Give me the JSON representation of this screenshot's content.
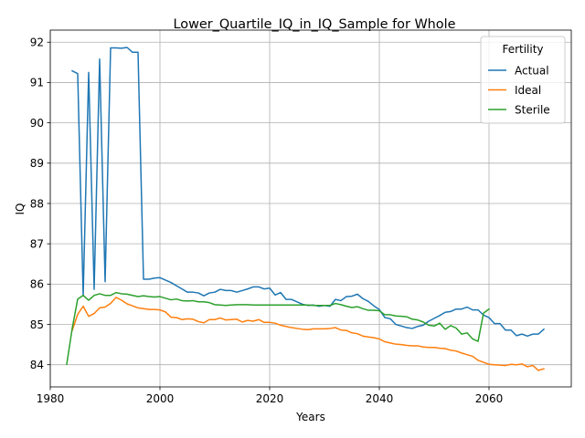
{
  "chart_data": {
    "type": "line",
    "title": "Lower_Quartile_IQ_in_IQ_Sample for Whole",
    "xlabel": "Years",
    "ylabel": "IQ",
    "xlim": [
      1980,
      2075
    ],
    "ylim": [
      83.45,
      92.3
    ],
    "xticks": [
      1980,
      2000,
      2020,
      2040,
      2060
    ],
    "yticks": [
      84,
      85,
      86,
      87,
      88,
      89,
      90,
      91,
      92
    ],
    "grid": true,
    "legend": {
      "title": "Fertility",
      "placement": "top-right"
    },
    "series": [
      {
        "name": "Actual",
        "color": "#1f77b4",
        "points": [
          [
            1984,
            91.29
          ],
          [
            1985,
            91.22
          ],
          [
            1986,
            85.72
          ],
          [
            1987,
            91.25
          ],
          [
            1988,
            85.87
          ],
          [
            1989,
            91.58
          ],
          [
            1990,
            86.06
          ],
          [
            1991,
            91.86
          ],
          [
            1992,
            91.86
          ],
          [
            1993,
            91.85
          ],
          [
            1994,
            91.87
          ],
          [
            1995,
            91.75
          ],
          [
            1996,
            91.75
          ],
          [
            1997,
            86.12
          ],
          [
            1998,
            86.12
          ],
          [
            1999,
            86.15
          ],
          [
            2000,
            86.16
          ],
          [
            2001,
            86.1
          ],
          [
            2002,
            86.04
          ],
          [
            2003,
            85.96
          ],
          [
            2004,
            85.88
          ],
          [
            2005,
            85.8
          ],
          [
            2006,
            85.8
          ],
          [
            2007,
            85.78
          ],
          [
            2008,
            85.71
          ],
          [
            2009,
            85.78
          ],
          [
            2010,
            85.8
          ],
          [
            2011,
            85.87
          ],
          [
            2012,
            85.84
          ],
          [
            2013,
            85.84
          ],
          [
            2014,
            85.8
          ],
          [
            2015,
            85.84
          ],
          [
            2016,
            85.88
          ],
          [
            2017,
            85.93
          ],
          [
            2018,
            85.93
          ],
          [
            2019,
            85.88
          ],
          [
            2020,
            85.9
          ],
          [
            2021,
            85.73
          ],
          [
            2022,
            85.79
          ],
          [
            2023,
            85.62
          ],
          [
            2024,
            85.62
          ],
          [
            2025,
            85.56
          ],
          [
            2026,
            85.5
          ],
          [
            2027,
            85.47
          ],
          [
            2028,
            85.48
          ],
          [
            2029,
            85.45
          ],
          [
            2030,
            85.47
          ],
          [
            2031,
            85.45
          ],
          [
            2032,
            85.62
          ],
          [
            2033,
            85.59
          ],
          [
            2034,
            85.69
          ],
          [
            2035,
            85.7
          ],
          [
            2036,
            85.75
          ],
          [
            2037,
            85.64
          ],
          [
            2038,
            85.57
          ],
          [
            2039,
            85.46
          ],
          [
            2040,
            85.37
          ],
          [
            2041,
            85.17
          ],
          [
            2042,
            85.14
          ],
          [
            2043,
            85.0
          ],
          [
            2044,
            84.96
          ],
          [
            2045,
            84.92
          ],
          [
            2046,
            84.9
          ],
          [
            2047,
            84.95
          ],
          [
            2048,
            84.98
          ],
          [
            2049,
            85.08
          ],
          [
            2050,
            85.15
          ],
          [
            2051,
            85.22
          ],
          [
            2052,
            85.3
          ],
          [
            2053,
            85.32
          ],
          [
            2054,
            85.38
          ],
          [
            2055,
            85.38
          ],
          [
            2056,
            85.43
          ],
          [
            2057,
            85.36
          ],
          [
            2058,
            85.36
          ],
          [
            2059,
            85.23
          ],
          [
            2060,
            85.17
          ],
          [
            2061,
            85.02
          ],
          [
            2062,
            85.02
          ],
          [
            2063,
            84.86
          ],
          [
            2064,
            84.86
          ],
          [
            2065,
            84.72
          ],
          [
            2066,
            84.76
          ],
          [
            2067,
            84.71
          ],
          [
            2068,
            84.76
          ],
          [
            2069,
            84.76
          ],
          [
            2070,
            84.88
          ]
        ]
      },
      {
        "name": "Ideal",
        "color": "#ff7f0e",
        "points": [
          [
            1984,
            84.85
          ],
          [
            1985,
            85.25
          ],
          [
            1986,
            85.45
          ],
          [
            1987,
            85.2
          ],
          [
            1988,
            85.27
          ],
          [
            1989,
            85.41
          ],
          [
            1990,
            85.43
          ],
          [
            1991,
            85.52
          ],
          [
            1992,
            85.67
          ],
          [
            1993,
            85.6
          ],
          [
            1994,
            85.51
          ],
          [
            1995,
            85.46
          ],
          [
            1996,
            85.41
          ],
          [
            1997,
            85.39
          ],
          [
            1998,
            85.37
          ],
          [
            1999,
            85.37
          ],
          [
            2000,
            85.36
          ],
          [
            2001,
            85.31
          ],
          [
            2002,
            85.18
          ],
          [
            2003,
            85.17
          ],
          [
            2004,
            85.12
          ],
          [
            2005,
            85.14
          ],
          [
            2006,
            85.13
          ],
          [
            2007,
            85.07
          ],
          [
            2008,
            85.04
          ],
          [
            2009,
            85.12
          ],
          [
            2010,
            85.12
          ],
          [
            2011,
            85.16
          ],
          [
            2012,
            85.11
          ],
          [
            2013,
            85.12
          ],
          [
            2014,
            85.13
          ],
          [
            2015,
            85.06
          ],
          [
            2016,
            85.1
          ],
          [
            2017,
            85.08
          ],
          [
            2018,
            85.12
          ],
          [
            2019,
            85.05
          ],
          [
            2020,
            85.05
          ],
          [
            2021,
            85.03
          ],
          [
            2022,
            84.98
          ],
          [
            2023,
            84.95
          ],
          [
            2024,
            84.92
          ],
          [
            2025,
            84.9
          ],
          [
            2026,
            84.88
          ],
          [
            2027,
            84.87
          ],
          [
            2028,
            84.89
          ],
          [
            2029,
            84.89
          ],
          [
            2030,
            84.89
          ],
          [
            2031,
            84.9
          ],
          [
            2032,
            84.92
          ],
          [
            2033,
            84.86
          ],
          [
            2034,
            84.85
          ],
          [
            2035,
            84.79
          ],
          [
            2036,
            84.77
          ],
          [
            2037,
            84.71
          ],
          [
            2038,
            84.69
          ],
          [
            2039,
            84.67
          ],
          [
            2040,
            84.64
          ],
          [
            2041,
            84.57
          ],
          [
            2042,
            84.54
          ],
          [
            2043,
            84.51
          ],
          [
            2044,
            84.5
          ],
          [
            2045,
            84.48
          ],
          [
            2046,
            84.47
          ],
          [
            2047,
            84.47
          ],
          [
            2048,
            84.44
          ],
          [
            2049,
            84.43
          ],
          [
            2050,
            84.43
          ],
          [
            2051,
            84.41
          ],
          [
            2052,
            84.4
          ],
          [
            2053,
            84.36
          ],
          [
            2054,
            84.34
          ],
          [
            2055,
            84.29
          ],
          [
            2056,
            84.25
          ],
          [
            2057,
            84.21
          ],
          [
            2058,
            84.11
          ],
          [
            2059,
            84.06
          ],
          [
            2060,
            84.01
          ],
          [
            2061,
            84.0
          ],
          [
            2062,
            83.99
          ],
          [
            2063,
            83.98
          ],
          [
            2064,
            84.01
          ],
          [
            2065,
            84.0
          ],
          [
            2066,
            84.02
          ],
          [
            2067,
            83.95
          ],
          [
            2068,
            83.98
          ],
          [
            2069,
            83.86
          ],
          [
            2070,
            83.9
          ]
        ]
      },
      {
        "name": "Sterile",
        "color": "#2ca02c",
        "points": [
          [
            1983,
            84.01
          ],
          [
            1984,
            84.9
          ],
          [
            1985,
            85.63
          ],
          [
            1986,
            85.72
          ],
          [
            1987,
            85.6
          ],
          [
            1988,
            85.72
          ],
          [
            1989,
            85.76
          ],
          [
            1990,
            85.72
          ],
          [
            1991,
            85.72
          ],
          [
            1992,
            85.79
          ],
          [
            1993,
            85.76
          ],
          [
            1994,
            85.75
          ],
          [
            1995,
            85.72
          ],
          [
            1996,
            85.69
          ],
          [
            1997,
            85.71
          ],
          [
            1998,
            85.69
          ],
          [
            1999,
            85.68
          ],
          [
            2000,
            85.69
          ],
          [
            2001,
            85.65
          ],
          [
            2002,
            85.61
          ],
          [
            2003,
            85.63
          ],
          [
            2004,
            85.59
          ],
          [
            2005,
            85.58
          ],
          [
            2006,
            85.59
          ],
          [
            2007,
            85.56
          ],
          [
            2008,
            85.56
          ],
          [
            2009,
            85.54
          ],
          [
            2010,
            85.49
          ],
          [
            2011,
            85.48
          ],
          [
            2012,
            85.47
          ],
          [
            2013,
            85.48
          ],
          [
            2014,
            85.49
          ],
          [
            2015,
            85.49
          ],
          [
            2016,
            85.49
          ],
          [
            2017,
            85.48
          ],
          [
            2018,
            85.48
          ],
          [
            2019,
            85.48
          ],
          [
            2020,
            85.48
          ],
          [
            2021,
            85.48
          ],
          [
            2022,
            85.48
          ],
          [
            2023,
            85.48
          ],
          [
            2024,
            85.48
          ],
          [
            2025,
            85.48
          ],
          [
            2026,
            85.48
          ],
          [
            2027,
            85.48
          ],
          [
            2028,
            85.47
          ],
          [
            2029,
            85.47
          ],
          [
            2030,
            85.47
          ],
          [
            2031,
            85.47
          ],
          [
            2032,
            85.52
          ],
          [
            2033,
            85.49
          ],
          [
            2034,
            85.45
          ],
          [
            2035,
            85.42
          ],
          [
            2036,
            85.44
          ],
          [
            2037,
            85.39
          ],
          [
            2038,
            85.35
          ],
          [
            2039,
            85.35
          ],
          [
            2040,
            85.34
          ],
          [
            2041,
            85.24
          ],
          [
            2042,
            85.24
          ],
          [
            2043,
            85.21
          ],
          [
            2044,
            85.2
          ],
          [
            2045,
            85.19
          ],
          [
            2046,
            85.13
          ],
          [
            2047,
            85.11
          ],
          [
            2048,
            85.06
          ],
          [
            2049,
            84.98
          ],
          [
            2050,
            84.96
          ],
          [
            2051,
            85.03
          ],
          [
            2052,
            84.88
          ],
          [
            2053,
            84.97
          ],
          [
            2054,
            84.91
          ],
          [
            2055,
            84.76
          ],
          [
            2056,
            84.79
          ],
          [
            2057,
            84.64
          ],
          [
            2058,
            84.58
          ],
          [
            2059,
            85.28
          ],
          [
            2060,
            85.38
          ]
        ]
      }
    ]
  }
}
